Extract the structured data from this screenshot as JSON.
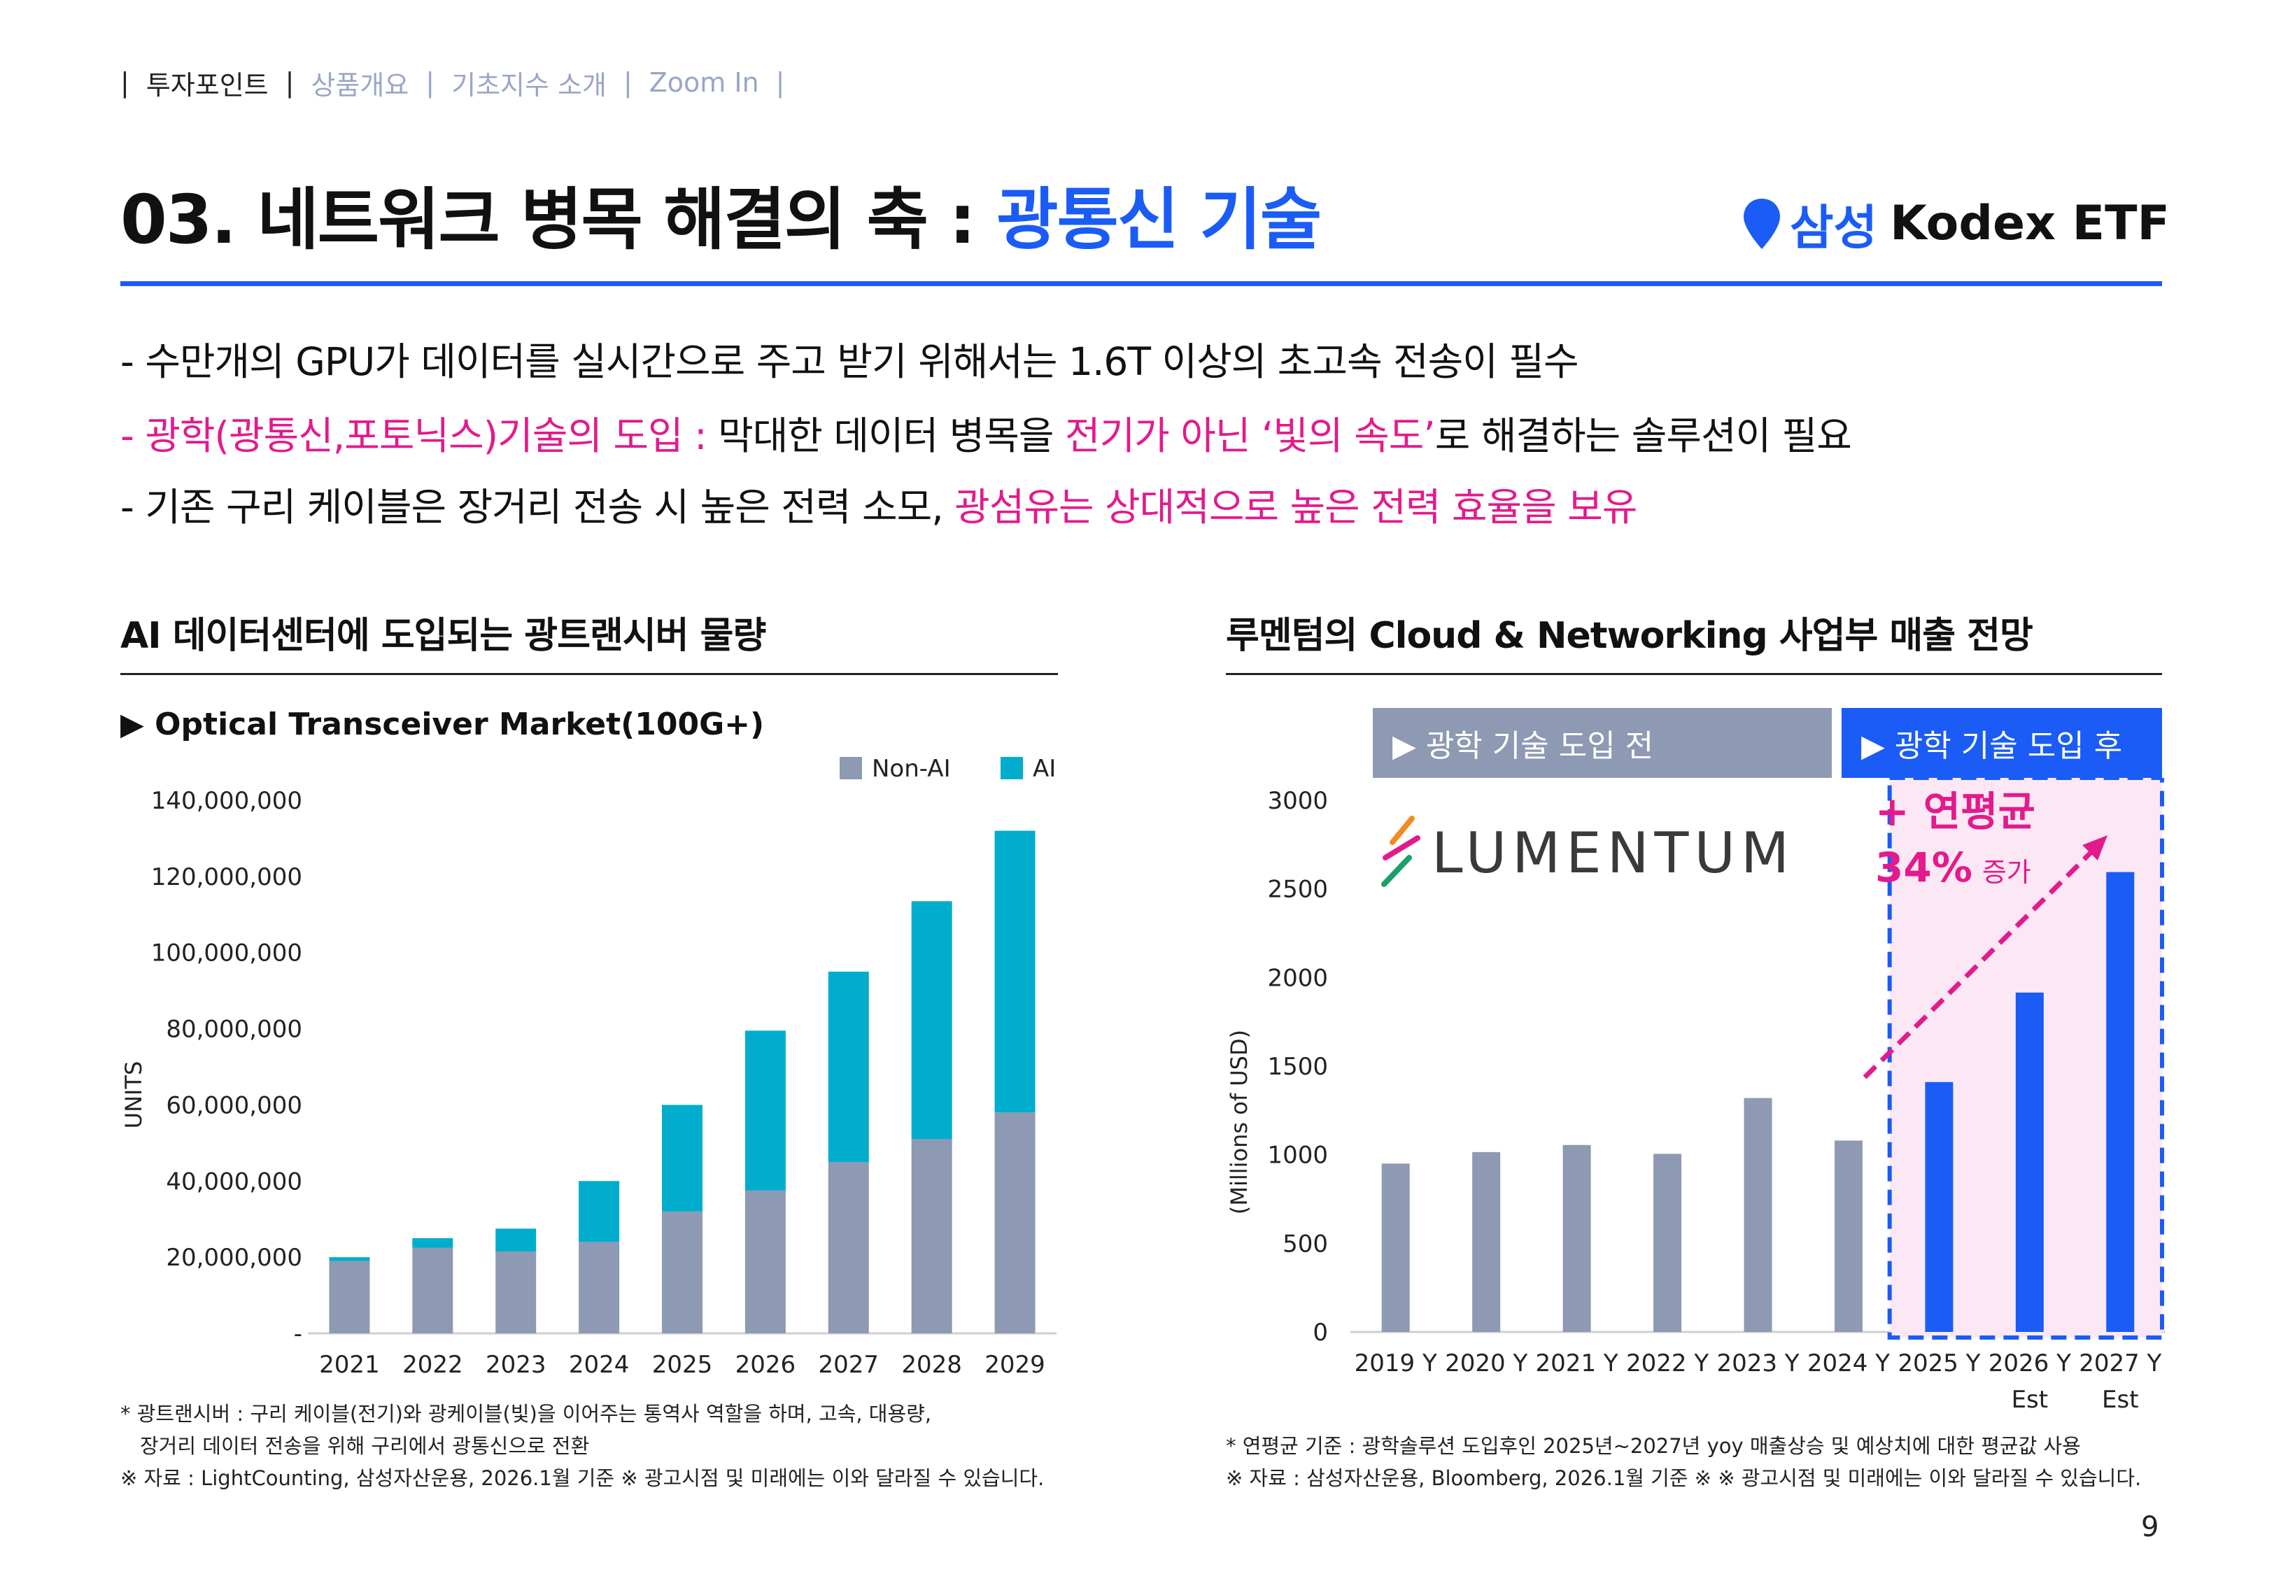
{
  "nav": {
    "items": [
      "투자포인트",
      "상품개요",
      "기초지수 소개",
      "Zoom In"
    ],
    "separator": "|"
  },
  "title": {
    "prefix": "03. 네트워크 병목 해결의 축 : ",
    "highlight": "광통신 기술"
  },
  "brand": {
    "samsung": "삼성",
    "name": "Kodex ETF"
  },
  "bullets": {
    "b1": "- 수만개의 GPU가 데이터를 실시간으로 주고 받기 위해서는 1.6T 이상의 초고속 전송이 필수",
    "b2_pink1": "- 광학(광통신,포토닉스)기술의 도입 :",
    "b2_text1": " 막대한 데이터 병목을 ",
    "b2_pink2": "전기가 아닌 ‘빛의 속도’",
    "b2_text2": "로 해결하는 솔루션이 필요",
    "b3_text": "- 기존 구리 케이블은 장거리 전송 시 높은 전력 소모, ",
    "b3_pink": "광섬유는 상대적으로 높은 전력 효율을 보유"
  },
  "left": {
    "section_title": "AI 데이터센터에 도입되는 광트랜시버 물량",
    "subtitle": "▶ Optical Transceiver Market(100G+)",
    "footnote1": "* 광트랜시버 : 구리 케이블(전기)와 광케이블(빛)을 이어주는 통역사 역할을 하며, 고속, 대용량,",
    "footnote2": "장거리 데이터 전송을 위해 구리에서 광통신으로 전환",
    "source": "※ 자료 : LightCounting, 삼성자산운용, 2026.1월 기준 ※ 광고시점 및 미래에는 이와 달라질 수 있습니다."
  },
  "right": {
    "section_title": "루멘텀의 Cloud & Networking 사업부 매출 전망",
    "tag_before": "▶ 광학 기술 도입 전",
    "tag_after": "▶ 광학 기술 도입 후",
    "logo_text": "LUMENTUM",
    "cagr_label": "+ 연평균",
    "cagr_value": "34%",
    "cagr_suffix": "증가",
    "footnote1": "* 연평균 기준 : 광학솔루션 도입후인 2025년~2027년 yoy 매출상승 및 예상치에 대한 평균값 사용",
    "source": "※ 자료 : 삼성자산운용, Bloomberg, 2026.1월 기준 ※ ※ 광고시점 및 미래에는 이와 달라질 수 있습니다."
  },
  "page_number": "9",
  "colors": {
    "accent": "#1a5cf5",
    "pink": "#e31a8c",
    "gray_bar": "#8e99b3",
    "teal": "#00adcc"
  },
  "chart_data": [
    {
      "type": "bar",
      "stacked": true,
      "title": "Optical Transceiver Market(100G+)",
      "ylabel": "UNITS",
      "xlabel": "",
      "categories": [
        "2021",
        "2022",
        "2023",
        "2024",
        "2025",
        "2026",
        "2027",
        "2028",
        "2029"
      ],
      "series": [
        {
          "name": "Non-AI",
          "values": [
            19000000,
            22500000,
            21500000,
            24000000,
            32000000,
            37500000,
            45000000,
            51000000,
            58000000
          ]
        },
        {
          "name": "AI",
          "values": [
            1000000,
            2500000,
            6000000,
            16000000,
            28000000,
            42000000,
            50000000,
            62500000,
            74000000
          ]
        }
      ],
      "ylim": [
        0,
        140000000
      ],
      "yticks": [
        0,
        20000000,
        40000000,
        60000000,
        80000000,
        100000000,
        120000000,
        140000000
      ],
      "ytick_labels": [
        "-",
        "20,000,000",
        "40,000,000",
        "60,000,000",
        "80,000,000",
        "100,000,000",
        "120,000,000",
        "140,000,000"
      ],
      "legend": "top-right"
    },
    {
      "type": "bar",
      "title": "루멘텀의 Cloud & Networking 사업부 매출 전망",
      "ylabel": "(Millions of USD)",
      "categories": [
        "2019 Y",
        "2020 Y",
        "2021 Y",
        "2022 Y",
        "2023 Y",
        "2024 Y",
        "2025 Y",
        "2026 Y",
        "2027 Y"
      ],
      "category_sublabels": [
        "",
        "",
        "",
        "",
        "",
        "",
        "",
        "Est",
        "Est"
      ],
      "values": [
        950,
        1015,
        1055,
        1005,
        1320,
        1080,
        1410,
        1915,
        2595
      ],
      "highlight_from_index": 6,
      "ylim": [
        0,
        3000
      ],
      "yticks": [
        0,
        500,
        1000,
        1500,
        2000,
        2500,
        3000
      ]
    }
  ]
}
